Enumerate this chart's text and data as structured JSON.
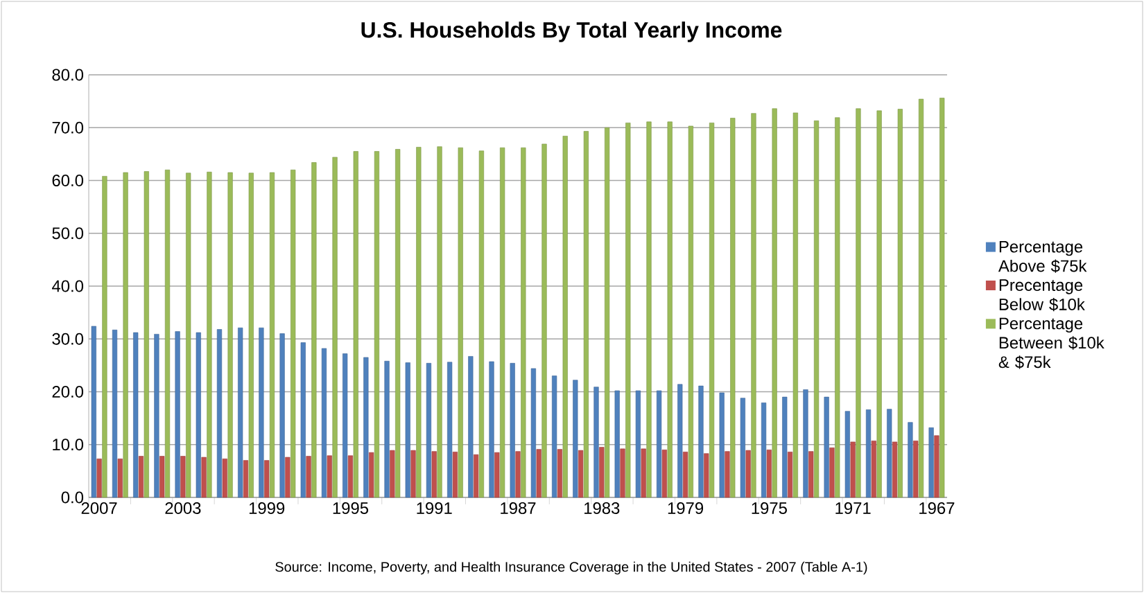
{
  "chart_data": {
    "type": "bar",
    "title": "U.S. Households By Total Yearly Income",
    "categories": [
      "2007",
      null,
      null,
      null,
      "2003",
      null,
      null,
      null,
      "1999",
      null,
      null,
      null,
      "1995",
      null,
      null,
      null,
      "1991",
      null,
      null,
      null,
      "1987",
      null,
      null,
      null,
      "1983",
      null,
      null,
      null,
      "1979",
      null,
      null,
      null,
      "1975",
      null,
      null,
      null,
      "1971",
      null,
      null,
      null,
      "1967"
    ],
    "series": [
      {
        "name": "Percentage Above $75k",
        "color": "#4f81bd",
        "values": [
          32.4,
          31.7,
          31.2,
          30.9,
          31.4,
          31.2,
          31.8,
          32.1,
          32.1,
          31.0,
          29.3,
          28.2,
          27.2,
          26.5,
          25.8,
          25.5,
          25.4,
          25.6,
          26.7,
          25.7,
          25.4,
          24.4,
          23.0,
          22.2,
          20.9,
          20.2,
          20.2,
          20.2,
          21.4,
          21.1,
          19.8,
          18.8,
          17.9,
          19.0,
          20.4,
          19.0,
          16.3,
          16.6,
          16.7,
          14.2,
          13.2
        ]
      },
      {
        "name": "Precentage Below $10k",
        "color": "#c0504d",
        "values": [
          7.3,
          7.3,
          7.8,
          7.8,
          7.8,
          7.6,
          7.3,
          7.0,
          7.0,
          7.6,
          7.8,
          7.9,
          7.9,
          8.5,
          8.9,
          8.9,
          8.7,
          8.6,
          8.1,
          8.5,
          8.7,
          9.1,
          9.1,
          8.9,
          9.5,
          9.2,
          9.2,
          9.0,
          8.6,
          8.3,
          8.7,
          8.9,
          9.0,
          8.6,
          8.7,
          9.4,
          10.5,
          10.7,
          10.5,
          10.7,
          11.7
        ]
      },
      {
        "name": "Percentage Between $10k & $75k",
        "color": "#9bbb59",
        "values": [
          60.8,
          61.5,
          61.7,
          62.0,
          61.4,
          61.6,
          61.5,
          61.4,
          61.5,
          62.0,
          63.4,
          64.4,
          65.5,
          65.5,
          65.9,
          66.3,
          66.4,
          66.2,
          65.6,
          66.2,
          66.2,
          66.9,
          68.4,
          69.3,
          70.0,
          70.9,
          71.1,
          71.1,
          70.3,
          70.9,
          71.8,
          72.7,
          73.6,
          72.8,
          71.3,
          71.9,
          73.6,
          73.2,
          73.5,
          75.4,
          75.6
        ]
      }
    ],
    "ylim": [
      0,
      80
    ],
    "yticks": [
      {
        "value": 0,
        "label": "0.0"
      },
      {
        "value": 10,
        "label": "10.0"
      },
      {
        "value": 20,
        "label": "20.0"
      },
      {
        "value": 30,
        "label": "30.0"
      },
      {
        "value": 40,
        "label": "40.0"
      },
      {
        "value": 50,
        "label": "50.0"
      },
      {
        "value": 60,
        "label": "60.0"
      },
      {
        "value": 70,
        "label": "70.0"
      },
      {
        "value": 80,
        "label": "80.0"
      }
    ],
    "grid": "y",
    "legend": "right",
    "annotations": [
      "Source: Income, Poverty, and Health Insurance Coverage in the United States - 2007 (Table A-1)"
    ]
  }
}
